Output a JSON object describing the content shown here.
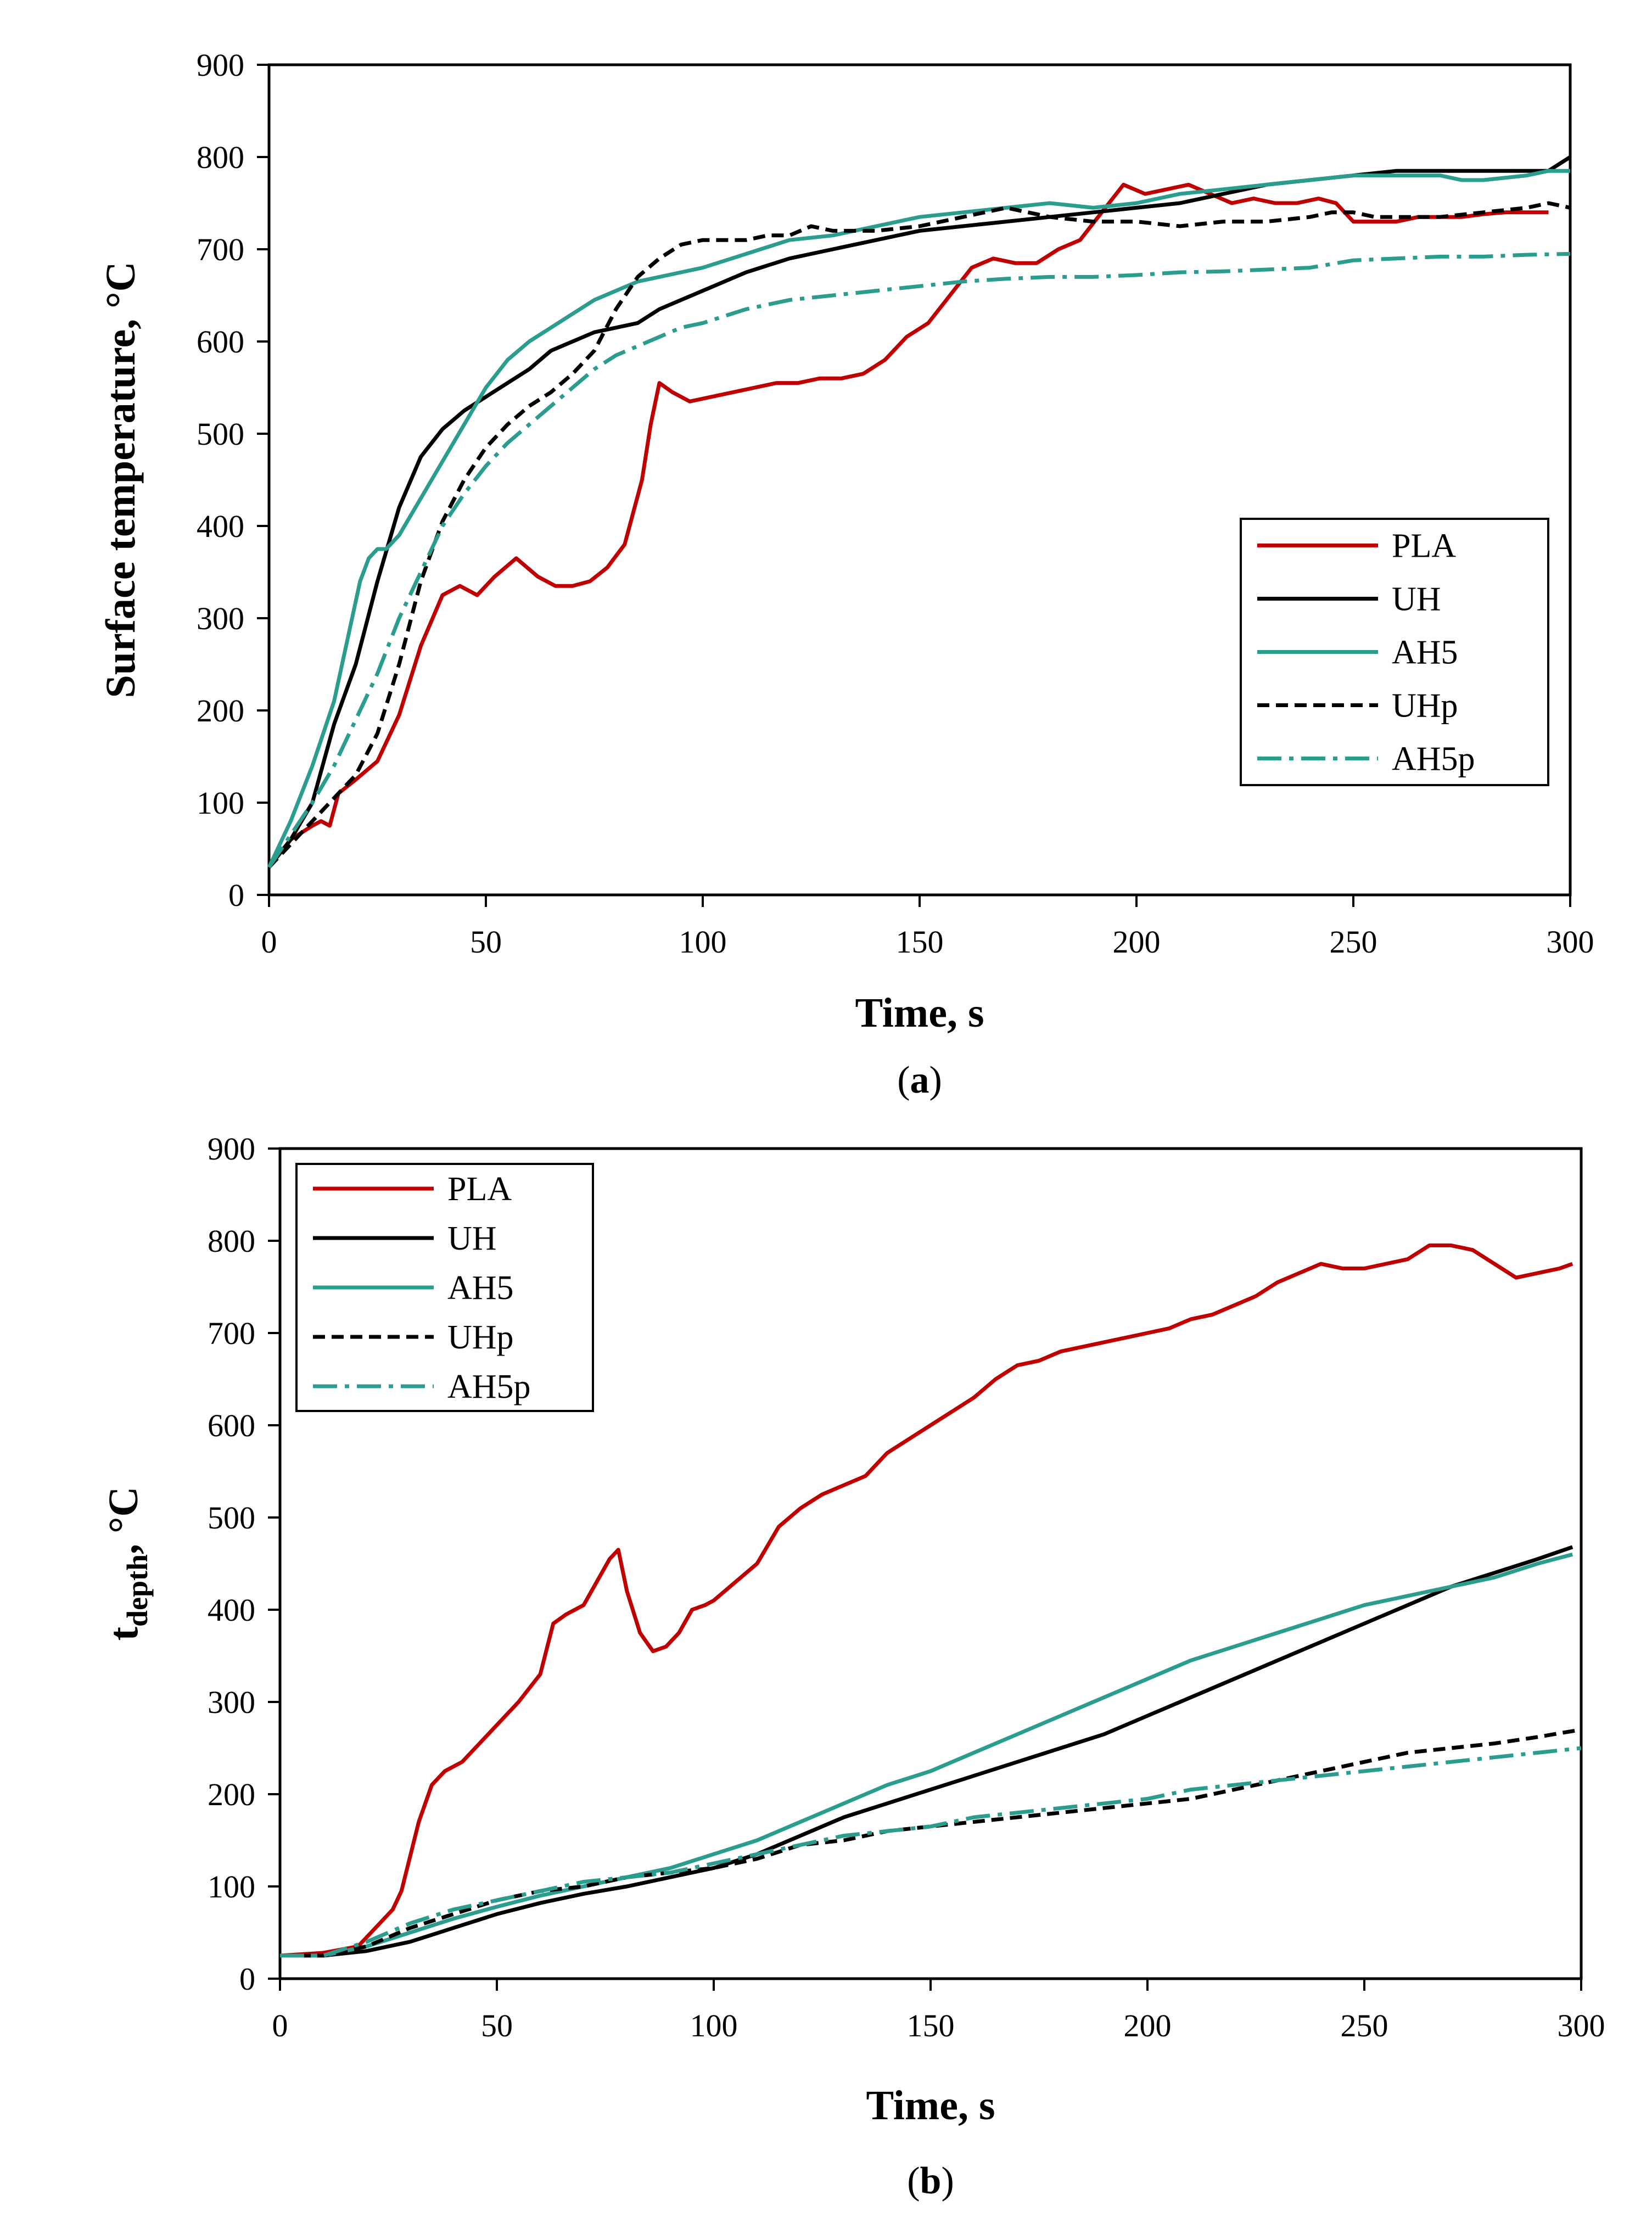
{
  "chart_data": [
    {
      "type": "line",
      "panel": "a",
      "caption_open": "(",
      "caption_letter": "a",
      "caption_close": ")",
      "xlabel": "Time, s",
      "ylabel": "Surface temperature, °C",
      "ylabel_sub": "",
      "ylabel_tail": "",
      "xlim": [
        0,
        300
      ],
      "ylim": [
        0,
        900
      ],
      "xticks": [
        0,
        50,
        100,
        150,
        200,
        250,
        300
      ],
      "yticks": [
        0,
        100,
        200,
        300,
        400,
        500,
        600,
        700,
        800,
        900
      ],
      "grid": false,
      "legend_placement": "middle-right",
      "series": [
        {
          "name": "PLA",
          "color": "#c00000",
          "dash": "solid",
          "x": [
            0,
            5,
            10,
            12,
            14,
            16,
            20,
            25,
            30,
            35,
            40,
            44,
            48,
            52,
            57,
            62,
            66,
            70,
            74,
            78,
            82,
            86,
            88,
            90,
            93,
            97,
            102,
            107,
            112,
            117,
            122,
            127,
            132,
            137,
            142,
            147,
            152,
            157,
            162,
            167,
            172,
            177,
            182,
            187,
            192,
            197,
            202,
            207,
            212,
            217,
            222,
            227,
            232,
            237,
            242,
            246,
            250,
            255,
            260,
            265,
            270,
            275,
            280,
            285,
            290,
            295
          ],
          "y": [
            30,
            60,
            75,
            80,
            75,
            110,
            125,
            145,
            195,
            270,
            325,
            335,
            325,
            345,
            365,
            345,
            335,
            335,
            340,
            355,
            380,
            450,
            510,
            555,
            545,
            535,
            540,
            545,
            550,
            555,
            555,
            560,
            560,
            565,
            580,
            605,
            620,
            650,
            680,
            690,
            685,
            685,
            700,
            710,
            740,
            770,
            760,
            765,
            770,
            760,
            750,
            755,
            750,
            750,
            755,
            750,
            730,
            730,
            730,
            735,
            735,
            735,
            738,
            740,
            740,
            740
          ]
        },
        {
          "name": "UH",
          "color": "#000000",
          "dash": "solid",
          "x": [
            0,
            5,
            10,
            15,
            20,
            25,
            30,
            35,
            40,
            45,
            50,
            55,
            60,
            65,
            70,
            75,
            80,
            85,
            90,
            95,
            100,
            110,
            120,
            130,
            140,
            150,
            160,
            170,
            180,
            190,
            200,
            210,
            220,
            230,
            240,
            250,
            260,
            270,
            280,
            290,
            295,
            300
          ],
          "y": [
            30,
            60,
            100,
            185,
            250,
            340,
            420,
            475,
            505,
            525,
            540,
            555,
            570,
            590,
            600,
            610,
            615,
            620,
            635,
            645,
            655,
            675,
            690,
            700,
            710,
            720,
            725,
            730,
            735,
            740,
            745,
            750,
            760,
            770,
            775,
            780,
            785,
            785,
            785,
            785,
            785,
            800
          ]
        },
        {
          "name": "AH5",
          "color": "#2a9d8f",
          "dash": "solid",
          "x": [
            0,
            5,
            10,
            15,
            18,
            21,
            23,
            25,
            27,
            30,
            35,
            40,
            45,
            50,
            55,
            60,
            65,
            70,
            75,
            80,
            85,
            90,
            95,
            100,
            110,
            120,
            130,
            140,
            150,
            160,
            170,
            180,
            190,
            200,
            210,
            220,
            230,
            240,
            250,
            260,
            270,
            275,
            280,
            290,
            295,
            300
          ],
          "y": [
            30,
            80,
            140,
            210,
            275,
            340,
            365,
            375,
            375,
            390,
            430,
            470,
            510,
            550,
            580,
            600,
            615,
            630,
            645,
            655,
            665,
            670,
            675,
            680,
            695,
            710,
            715,
            725,
            735,
            740,
            745,
            750,
            745,
            750,
            760,
            765,
            770,
            775,
            780,
            780,
            780,
            775,
            775,
            780,
            785,
            785
          ]
        },
        {
          "name": "UHp",
          "color": "#000000",
          "dash": "dashed",
          "x": [
            0,
            5,
            10,
            15,
            20,
            25,
            30,
            35,
            40,
            45,
            50,
            55,
            60,
            65,
            70,
            75,
            80,
            85,
            90,
            95,
            100,
            105,
            110,
            115,
            120,
            125,
            130,
            140,
            150,
            160,
            165,
            170,
            175,
            180,
            190,
            200,
            210,
            220,
            230,
            240,
            245,
            250,
            255,
            260,
            270,
            280,
            290,
            295,
            300
          ],
          "y": [
            30,
            55,
            80,
            105,
            130,
            175,
            250,
            340,
            405,
            450,
            485,
            510,
            530,
            545,
            565,
            590,
            635,
            670,
            690,
            705,
            710,
            710,
            710,
            715,
            715,
            725,
            720,
            720,
            725,
            735,
            740,
            745,
            740,
            735,
            730,
            730,
            725,
            730,
            730,
            735,
            740,
            740,
            735,
            735,
            735,
            740,
            745,
            750,
            745
          ]
        },
        {
          "name": "AH5p",
          "color": "#2a9d8f",
          "dash": "dashdot",
          "x": [
            0,
            5,
            10,
            15,
            20,
            25,
            30,
            35,
            40,
            45,
            50,
            55,
            60,
            65,
            70,
            75,
            80,
            85,
            90,
            95,
            100,
            110,
            120,
            130,
            140,
            150,
            160,
            170,
            180,
            190,
            200,
            210,
            220,
            230,
            240,
            250,
            260,
            270,
            280,
            290,
            300
          ],
          "y": [
            30,
            65,
            100,
            140,
            190,
            240,
            300,
            350,
            400,
            435,
            465,
            490,
            510,
            530,
            550,
            570,
            585,
            595,
            605,
            615,
            620,
            635,
            645,
            650,
            655,
            660,
            665,
            668,
            670,
            670,
            672,
            675,
            676,
            678,
            680,
            688,
            690,
            692,
            692,
            694,
            695
          ]
        }
      ]
    },
    {
      "type": "line",
      "panel": "b",
      "caption_open": "(",
      "caption_letter": "b",
      "caption_close": ")",
      "xlabel": "Time, s",
      "ylabel": "t",
      "ylabel_sub": "depth",
      "ylabel_tail": ", °C",
      "xlim": [
        0,
        300
      ],
      "ylim": [
        0,
        900
      ],
      "xticks": [
        0,
        50,
        100,
        150,
        200,
        250,
        300
      ],
      "yticks": [
        0,
        100,
        200,
        300,
        400,
        500,
        600,
        700,
        800,
        900
      ],
      "grid": false,
      "legend_placement": "top-left",
      "series": [
        {
          "name": "PLA",
          "color": "#c00000",
          "dash": "solid",
          "x": [
            0,
            10,
            18,
            22,
            26,
            28,
            32,
            35,
            38,
            42,
            45,
            50,
            55,
            60,
            63,
            66,
            70,
            73,
            76,
            78,
            80,
            83,
            86,
            89,
            92,
            95,
            98,
            100,
            105,
            110,
            115,
            120,
            125,
            130,
            135,
            140,
            145,
            150,
            155,
            160,
            165,
            170,
            175,
            180,
            185,
            190,
            195,
            200,
            205,
            210,
            215,
            220,
            225,
            230,
            235,
            240,
            245,
            250,
            255,
            260,
            265,
            270,
            275,
            280,
            285,
            290,
            295,
            298
          ],
          "y": [
            25,
            28,
            35,
            55,
            75,
            95,
            170,
            210,
            225,
            235,
            250,
            275,
            300,
            330,
            385,
            395,
            405,
            430,
            455,
            465,
            420,
            375,
            355,
            360,
            375,
            400,
            405,
            410,
            430,
            450,
            490,
            510,
            525,
            535,
            545,
            570,
            585,
            600,
            615,
            630,
            650,
            665,
            670,
            680,
            685,
            690,
            695,
            700,
            705,
            715,
            720,
            730,
            740,
            755,
            765,
            775,
            770,
            770,
            775,
            780,
            795,
            795,
            790,
            775,
            760,
            765,
            770,
            775
          ]
        },
        {
          "name": "UH",
          "color": "#000000",
          "dash": "solid",
          "x": [
            0,
            10,
            20,
            30,
            40,
            50,
            60,
            70,
            80,
            90,
            100,
            110,
            120,
            130,
            140,
            150,
            160,
            170,
            180,
            190,
            200,
            210,
            220,
            230,
            240,
            250,
            260,
            270,
            280,
            290,
            298
          ],
          "y": [
            25,
            25,
            30,
            40,
            55,
            70,
            82,
            92,
            100,
            110,
            120,
            135,
            155,
            175,
            190,
            205,
            220,
            235,
            250,
            265,
            285,
            305,
            325,
            345,
            365,
            385,
            405,
            425,
            440,
            455,
            468
          ]
        },
        {
          "name": "AH5",
          "color": "#2a9d8f",
          "dash": "solid",
          "x": [
            0,
            10,
            20,
            30,
            40,
            50,
            60,
            70,
            80,
            90,
            100,
            110,
            120,
            130,
            140,
            150,
            160,
            170,
            180,
            190,
            200,
            210,
            220,
            230,
            240,
            250,
            260,
            270,
            280,
            290,
            298
          ],
          "y": [
            25,
            25,
            35,
            50,
            65,
            78,
            90,
            100,
            110,
            120,
            135,
            150,
            170,
            190,
            210,
            225,
            245,
            265,
            285,
            305,
            325,
            345,
            360,
            375,
            390,
            405,
            415,
            425,
            435,
            450,
            460
          ]
        },
        {
          "name": "UHp",
          "color": "#000000",
          "dash": "dashed",
          "x": [
            0,
            10,
            20,
            30,
            40,
            50,
            60,
            70,
            80,
            90,
            100,
            110,
            120,
            130,
            140,
            150,
            160,
            170,
            180,
            190,
            200,
            210,
            220,
            230,
            240,
            250,
            260,
            270,
            280,
            290,
            300
          ],
          "y": [
            25,
            25,
            35,
            55,
            70,
            85,
            95,
            100,
            110,
            115,
            120,
            130,
            145,
            150,
            160,
            165,
            170,
            175,
            180,
            185,
            190,
            195,
            205,
            215,
            225,
            235,
            245,
            250,
            255,
            262,
            270
          ]
        },
        {
          "name": "AH5p",
          "color": "#2a9d8f",
          "dash": "dashdot",
          "x": [
            0,
            10,
            20,
            30,
            40,
            50,
            60,
            70,
            80,
            90,
            100,
            110,
            120,
            130,
            140,
            150,
            160,
            170,
            180,
            190,
            200,
            210,
            220,
            230,
            240,
            250,
            260,
            270,
            280,
            290,
            300
          ],
          "y": [
            25,
            25,
            40,
            60,
            75,
            85,
            95,
            105,
            110,
            115,
            125,
            135,
            145,
            155,
            160,
            165,
            175,
            180,
            185,
            190,
            195,
            205,
            210,
            215,
            220,
            225,
            230,
            235,
            240,
            245,
            250
          ]
        }
      ]
    }
  ]
}
